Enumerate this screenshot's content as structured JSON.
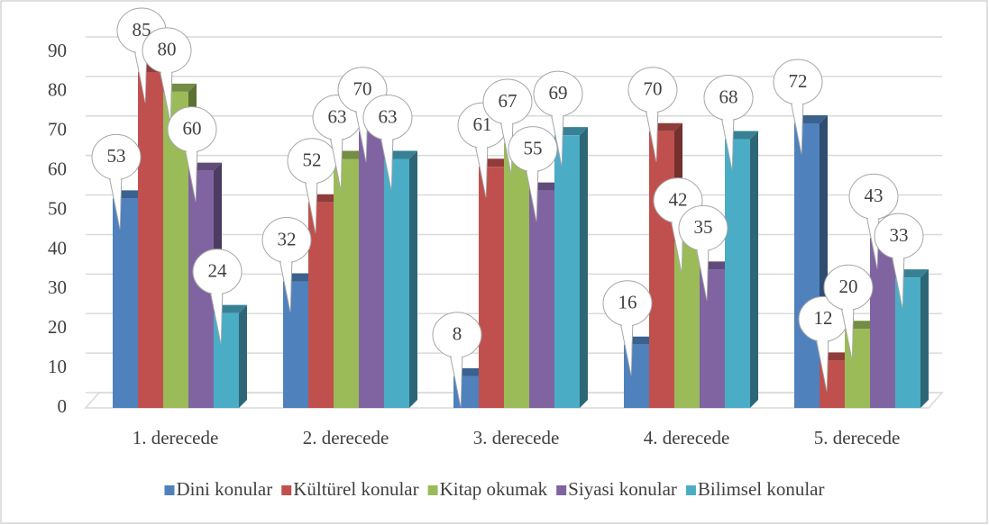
{
  "chart_data": {
    "type": "bar3d",
    "categories": [
      "1. derecede",
      "2. derecede",
      "3. derecede",
      "4. derecede",
      "5. derecede"
    ],
    "series": [
      {
        "name": "Dini konular",
        "color": "#4f81bd",
        "values": [
          53,
          32,
          8,
          16,
          72
        ]
      },
      {
        "name": "Kültürel konular",
        "color": "#c0504d",
        "values": [
          85,
          52,
          61,
          70,
          12
        ]
      },
      {
        "name": "Kitap okumak",
        "color": "#9bbb59",
        "values": [
          80,
          63,
          67,
          42,
          20
        ]
      },
      {
        "name": "Siyasi konular",
        "color": "#8064a2",
        "values": [
          60,
          70,
          55,
          35,
          43
        ]
      },
      {
        "name": "Bilimsel konular",
        "color": "#4bacc6",
        "values": [
          24,
          63,
          69,
          68,
          33
        ]
      }
    ],
    "ylim": [
      0,
      90
    ],
    "yticks": [
      0,
      10,
      20,
      30,
      40,
      50,
      60,
      70,
      80,
      90
    ],
    "grid": true,
    "legend": "bottom"
  }
}
